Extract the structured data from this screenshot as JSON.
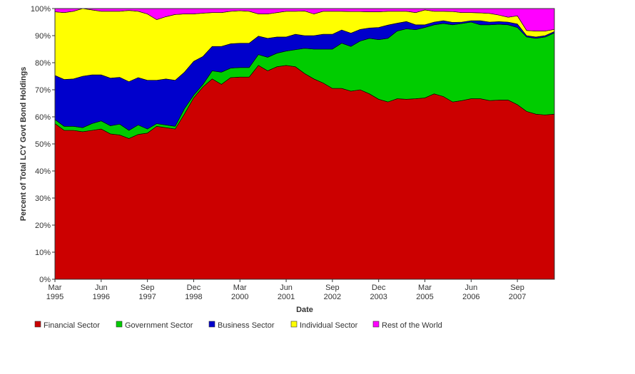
{
  "chart_data": {
    "type": "area",
    "stacked": true,
    "normalized_percent": true,
    "xlabel": "Date",
    "ylabel": "Percent of Total LCY Govt Bond Holdings",
    "ylim": [
      0,
      100
    ],
    "yticks": [
      "0%",
      "10%",
      "20%",
      "30%",
      "40%",
      "50%",
      "60%",
      "70%",
      "80%",
      "90%",
      "100%"
    ],
    "x": [
      "Mar 1995",
      "Jun 1995",
      "Sep 1995",
      "Dec 1995",
      "Mar 1996",
      "Jun 1996",
      "Sep 1996",
      "Dec 1996",
      "Mar 1997",
      "Jun 1997",
      "Sep 1997",
      "Dec 1997",
      "Mar 1998",
      "Jun 1998",
      "Sep 1998",
      "Dec 1998",
      "Mar 1999",
      "Jun 1999",
      "Sep 1999",
      "Dec 1999",
      "Mar 2000",
      "Jun 2000",
      "Sep 2000",
      "Dec 2000",
      "Mar 2001",
      "Jun 2001",
      "Sep 2001",
      "Dec 2001",
      "Mar 2002",
      "Jun 2002",
      "Sep 2002",
      "Dec 2002",
      "Mar 2003",
      "Jun 2003",
      "Sep 2003",
      "Dec 2003",
      "Mar 2004",
      "Jun 2004",
      "Sep 2004",
      "Dec 2004",
      "Mar 2005",
      "Jun 2005",
      "Sep 2005",
      "Dec 2005",
      "Mar 2006",
      "Jun 2006",
      "Sep 2006",
      "Dec 2006",
      "Mar 2007",
      "Jun 2007",
      "Sep 2007",
      "Dec 2007",
      "Mar 2008",
      "Jun 2008",
      "Sep 2008"
    ],
    "xticks": [
      {
        "index": 0,
        "line1": "Mar",
        "line2": "1995"
      },
      {
        "index": 5,
        "line1": "Jun",
        "line2": "1996"
      },
      {
        "index": 10,
        "line1": "Sep",
        "line2": "1997"
      },
      {
        "index": 15,
        "line1": "Dec",
        "line2": "1998"
      },
      {
        "index": 20,
        "line1": "Mar",
        "line2": "2000"
      },
      {
        "index": 25,
        "line1": "Jun",
        "line2": "2001"
      },
      {
        "index": 30,
        "line1": "Sep",
        "line2": "2002"
      },
      {
        "index": 35,
        "line1": "Dec",
        "line2": "2003"
      },
      {
        "index": 40,
        "line1": "Mar",
        "line2": "2005"
      },
      {
        "index": 45,
        "line1": "Jun",
        "line2": "2006"
      },
      {
        "index": 50,
        "line1": "Sep",
        "line2": "2007"
      }
    ],
    "legend_position": "bottom-left",
    "series": [
      {
        "name": "Financial Sector",
        "color": "#cc0000",
        "values": [
          57.5,
          55,
          55,
          54.5,
          55,
          55.5,
          53.7,
          53.3,
          52,
          53.5,
          54,
          56.5,
          56,
          55.5,
          61,
          67,
          71,
          74,
          72,
          74.5,
          74.7,
          74.7,
          79,
          77,
          78.5,
          79,
          78.5,
          76,
          74,
          72.5,
          70.5,
          70.5,
          69.5,
          70,
          68.5,
          66.5,
          65.5,
          66.7,
          66.5,
          66.7,
          67,
          68.5,
          67.5,
          65.5,
          66,
          66.7,
          66.7,
          66,
          66.2,
          66.2,
          64.5,
          62,
          61,
          60.7,
          61
        ]
      },
      {
        "name": "Government Sector",
        "color": "#00cc00",
        "values": [
          1.5,
          1.5,
          1.5,
          1.5,
          2.5,
          3,
          3,
          4,
          3,
          3.5,
          1.5,
          1,
          1,
          1,
          2,
          1,
          1,
          3,
          4.5,
          3.5,
          3.5,
          3.5,
          4,
          5,
          5,
          5.3,
          6.3,
          9.3,
          11,
          12.5,
          14.5,
          16.7,
          16.5,
          18,
          20.5,
          22,
          23.5,
          25,
          26,
          25.5,
          26,
          25.5,
          27,
          28.5,
          28.5,
          28.3,
          27.3,
          28,
          28,
          27.8,
          28.5,
          27.5,
          28,
          28.8,
          30
        ]
      },
      {
        "name": "Business Sector",
        "color": "#0000cc",
        "values": [
          16.3,
          17.3,
          17.5,
          19,
          18,
          17,
          17.6,
          17.3,
          18,
          17.5,
          18,
          16,
          17,
          17,
          13.5,
          12.5,
          10.3,
          9,
          9.5,
          9,
          9,
          9,
          6.8,
          7,
          6,
          5.2,
          5.7,
          4.7,
          5,
          5.5,
          5.5,
          4.9,
          4.9,
          4.3,
          3.8,
          4.5,
          4.9,
          2.9,
          2.7,
          1.8,
          1,
          1,
          1,
          0.9,
          0.5,
          0.5,
          1.5,
          1,
          1,
          1,
          1.3,
          0.5,
          0.5,
          0.5,
          0.5
        ]
      },
      {
        "name": "Individual Sector",
        "color": "#ffff00",
        "values": [
          23.5,
          24.7,
          25,
          25,
          24,
          23.5,
          24.7,
          24.4,
          26.3,
          24.5,
          24.5,
          22.4,
          23,
          24.3,
          21.5,
          17.5,
          16,
          12.5,
          12.5,
          12,
          12,
          11.8,
          8.2,
          9,
          9,
          9.5,
          8.5,
          9.1,
          8,
          8.5,
          8.5,
          6.9,
          8,
          6.6,
          6,
          5.8,
          5.1,
          4.4,
          3.8,
          4.5,
          5.5,
          4,
          3.5,
          4,
          3.5,
          3,
          2.9,
          3.2,
          2.4,
          1.8,
          3,
          1.9,
          2.2,
          1.7,
          0.8
        ]
      },
      {
        "name": "Rest of the World",
        "color": "#ff00ff",
        "values": [
          1.2,
          1.5,
          1,
          0,
          0.5,
          1,
          1,
          1,
          0.7,
          1,
          2,
          4.1,
          3,
          2.2,
          2,
          2,
          1.7,
          1.5,
          1.5,
          1,
          0.8,
          1,
          2,
          2,
          1.5,
          1,
          1,
          0.9,
          2,
          1,
          1,
          1,
          1.1,
          1.1,
          1.2,
          1.2,
          1,
          1,
          1,
          1.5,
          0.5,
          1,
          1,
          1.1,
          1.5,
          1.5,
          1.6,
          1.8,
          2.4,
          3.2,
          2.7,
          8.1,
          8.3,
          8.3,
          7.7
        ]
      }
    ]
  }
}
